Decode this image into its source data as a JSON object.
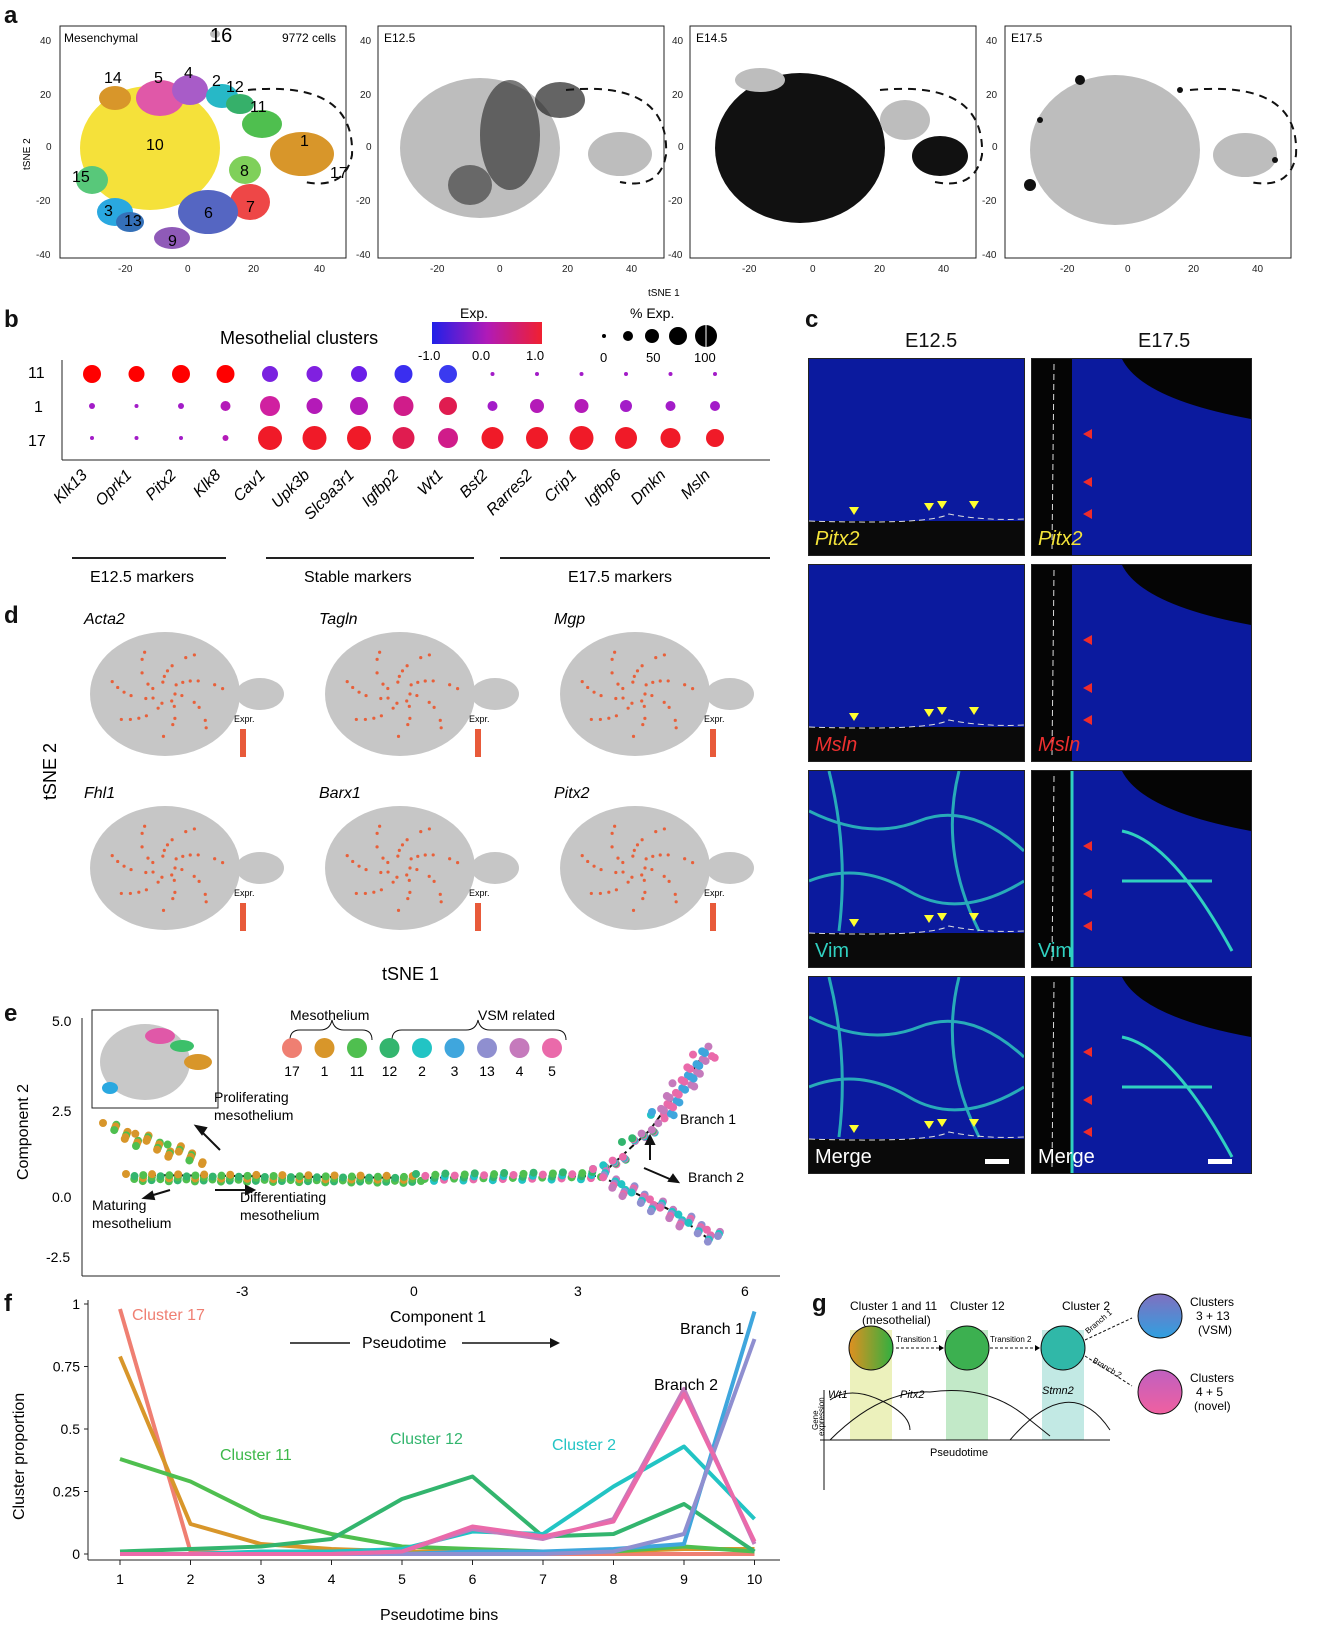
{
  "panel_letters": {
    "a": "a",
    "b": "b",
    "c": "c",
    "d": "d",
    "e": "e",
    "f": "f",
    "g": "g"
  },
  "panel_a": {
    "title": "Mesenchymal",
    "cell_count": "9772 cells",
    "stages": [
      "E12.5",
      "E14.5",
      "E17.5"
    ],
    "xlabel": "tSNE 1",
    "ylabel": "tSNE 2",
    "xticks": [
      "-20",
      "0",
      "20",
      "40"
    ],
    "yticks": [
      "40",
      "20",
      "0",
      "-20",
      "-40"
    ],
    "cluster_labels": [
      "16",
      "14",
      "5",
      "4",
      "2",
      "12",
      "11",
      "1",
      "17",
      "10",
      "8",
      "15",
      "7",
      "6",
      "3",
      "13",
      "9"
    ],
    "colors": {
      "yellow": "#f5e13a",
      "orange": "#d8962a",
      "green": "#4fbf4f",
      "gray": "#bdbdbd",
      "black": "#111111"
    }
  },
  "panel_b": {
    "title": "Mesothelial clusters",
    "legend_exp_title": "Exp.",
    "legend_exp_ticks": [
      "-1.0",
      "0.0",
      "1.0"
    ],
    "legend_size_title": "% Exp.",
    "legend_size_ticks": [
      "0",
      "50",
      "100"
    ],
    "rows": [
      "11",
      "1",
      "17"
    ],
    "genes": [
      "Klk13",
      "Oprk1",
      "Pitx2",
      "Klk8",
      "Cav1",
      "Upk3b",
      "Slc9a3r1",
      "Igfbp2",
      "Wt1",
      "Bst2",
      "Rarres2",
      "Crip1",
      "Igfbp6",
      "Dmkn",
      "Msln"
    ],
    "groups": [
      "E12.5 markers",
      "Stable markers",
      "E17.5 markers"
    ]
  },
  "panel_c": {
    "cols": [
      "E12.5",
      "E17.5"
    ],
    "rows": [
      "Pitx2",
      "Msln",
      "Vim",
      "Merge"
    ]
  },
  "panel_d": {
    "genes": [
      "Acta2",
      "Tagln",
      "Mgp",
      "Fhl1",
      "Barx1",
      "Pitx2"
    ],
    "legend": "Expr.",
    "xlabel": "tSNE 1",
    "ylabel": "tSNE 2"
  },
  "panel_e": {
    "xlabel": "Component 1",
    "ylabel": "Component 2",
    "xticks": [
      "-3",
      "0",
      "3",
      "6"
    ],
    "yticks": [
      "5.0",
      "2.5",
      "0.0",
      "-2.5"
    ],
    "group_meso": "Mesothelium",
    "group_vsm": "VSM related",
    "legend_clusters": [
      "17",
      "1",
      "11",
      "12",
      "2",
      "3",
      "13",
      "4",
      "5"
    ],
    "legend_colors": [
      "#ef7f72",
      "#d8962a",
      "#4fbf4f",
      "#33b56e",
      "#22c4c4",
      "#3fa6dd",
      "#8f8fd0",
      "#c57abc",
      "#ea6aaa"
    ],
    "annotations": {
      "prolif1": "Proliferating",
      "prolif2": "mesothelium",
      "mat1": "Maturing",
      "mat2": "mesothelium",
      "diff1": "Differentiating",
      "diff2": "mesothelium",
      "b1": "Branch 1",
      "b2": "Branch 2"
    }
  },
  "panel_f": {
    "xlabel": "Pseudotime bins",
    "ylabel": "Cluster proportion",
    "pseudotime": "Pseudotime",
    "labels": {
      "c17": "Cluster 17",
      "c11": "Cluster 11",
      "c12": "Cluster 12",
      "c2": "Cluster 2",
      "b1": "Branch 1",
      "b2": "Branch 2"
    }
  },
  "chart_data": {
    "type": "line",
    "x": [
      1,
      2,
      3,
      4,
      5,
      6,
      7,
      8,
      9,
      10
    ],
    "xlabel": "Pseudotime bins",
    "ylabel": "Cluster proportion",
    "ylim": [
      0,
      1
    ],
    "yticks": [
      "0",
      "0.25",
      "0.5",
      "0.75",
      "1"
    ],
    "series": [
      {
        "name": "Cluster 17",
        "color": "#ef7f72",
        "values": [
          0.98,
          0.01,
          0.0,
          0.0,
          0.0,
          0.0,
          0.0,
          0.0,
          0.0,
          0.0
        ]
      },
      {
        "name": "1",
        "color": "#d8962a",
        "values": [
          0.79,
          0.12,
          0.04,
          0.02,
          0.01,
          0.01,
          0.01,
          0.01,
          0.02,
          0.02
        ]
      },
      {
        "name": "Cluster 11",
        "color": "#4fbf4f",
        "values": [
          0.38,
          0.29,
          0.15,
          0.08,
          0.03,
          0.02,
          0.01,
          0.01,
          0.03,
          0.01
        ]
      },
      {
        "name": "Cluster 12",
        "color": "#33b56e",
        "values": [
          0.01,
          0.02,
          0.03,
          0.06,
          0.22,
          0.31,
          0.07,
          0.08,
          0.2,
          0.01
        ]
      },
      {
        "name": "Cluster 2",
        "color": "#22c4c4",
        "values": [
          0.0,
          0.0,
          0.01,
          0.01,
          0.02,
          0.09,
          0.08,
          0.27,
          0.43,
          0.14
        ]
      },
      {
        "name": "3",
        "color": "#3fa6dd",
        "values": [
          0.0,
          0.0,
          0.0,
          0.0,
          0.0,
          0.01,
          0.01,
          0.02,
          0.04,
          0.97
        ]
      },
      {
        "name": "13",
        "color": "#8f8fd0",
        "values": [
          0.0,
          0.0,
          0.0,
          0.0,
          0.0,
          0.0,
          0.0,
          0.01,
          0.08,
          0.86
        ]
      },
      {
        "name": "4",
        "color": "#c57abc",
        "values": [
          0.0,
          0.0,
          0.0,
          0.0,
          0.01,
          0.1,
          0.06,
          0.14,
          0.66,
          0.04
        ]
      },
      {
        "name": "5",
        "color": "#ea6aaa",
        "values": [
          0.0,
          0.0,
          0.0,
          0.0,
          0.01,
          0.11,
          0.07,
          0.13,
          0.64,
          0.05
        ]
      }
    ]
  },
  "panel_g": {
    "c1": "Cluster 1 and 11",
    "c1b": "(mesothelial)",
    "c12": "Cluster 12",
    "c2": "Cluster 2",
    "c3a": "Clusters",
    "c3b": "3 + 13",
    "c3c": "(VSM)",
    "c4a": "Clusters",
    "c4b": "4 + 5",
    "c4c": "(novel)",
    "t1": "Transition 1",
    "t2": "Transition 2",
    "br1": "Branch 1",
    "br2": "Branch 2",
    "wt1": "Wt1",
    "pitx2": "Pitx2",
    "stmn2": "Stmn2",
    "ylabel1": "Gene",
    "ylabel2": "expression",
    "xlabel": "Pseudotime"
  }
}
